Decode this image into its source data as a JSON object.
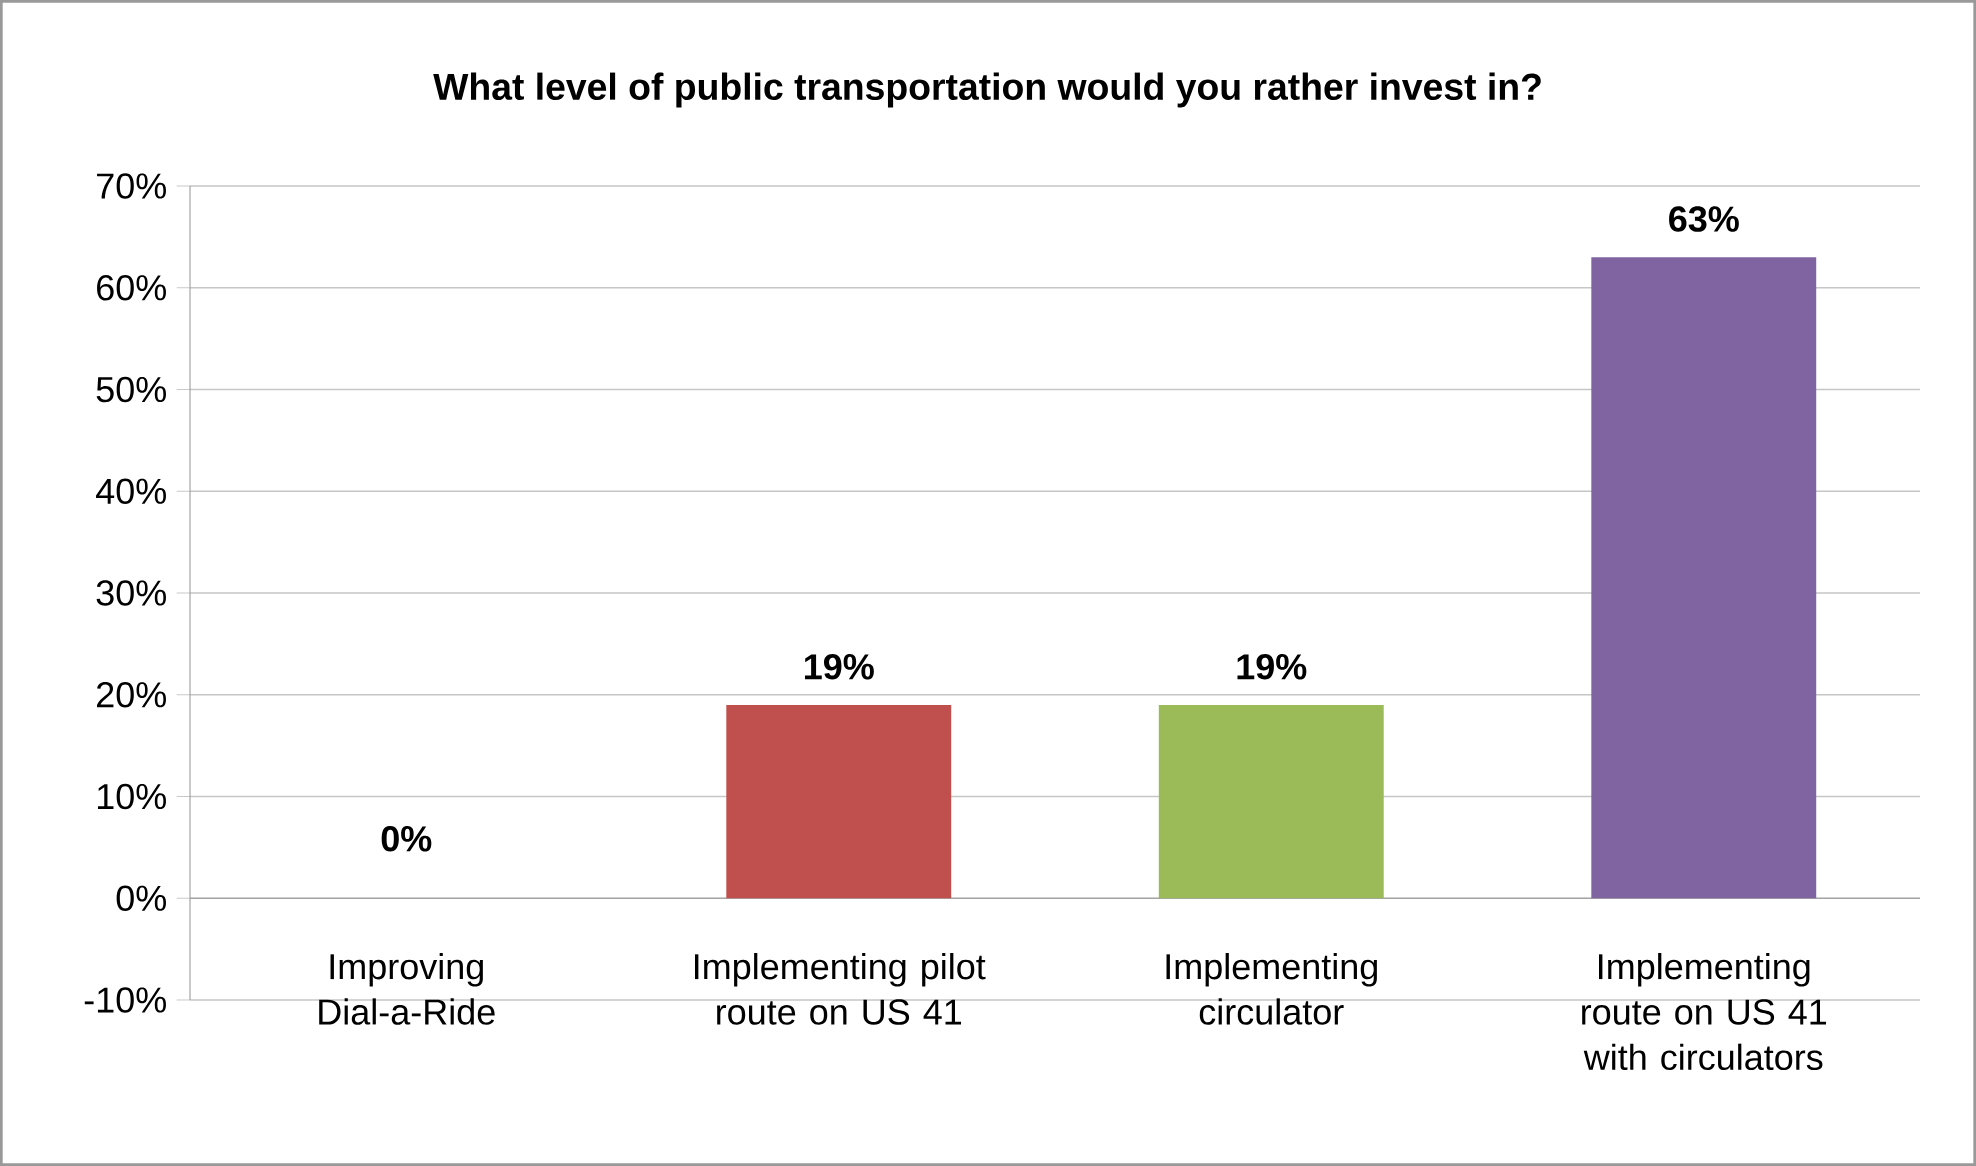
{
  "chart_data": {
    "type": "bar",
    "title": "What level of public transportation would you rather invest in?",
    "categories": [
      "Improving Dial-a-Ride",
      "Implementing pilot route on US 41",
      "Implementing circulator",
      "Implementing route on US 41 with circulators"
    ],
    "values": [
      0,
      19,
      19,
      63
    ],
    "value_labels": [
      "0%",
      "19%",
      "19%",
      "63%"
    ],
    "colors": [
      "#4f81bd",
      "#c0504d",
      "#9bbb59",
      "#8064a2"
    ],
    "ylim": [
      -10,
      70
    ],
    "yticks": [
      {
        "value": -10,
        "label": "-10%"
      },
      {
        "value": 0,
        "label": "0%"
      },
      {
        "value": 10,
        "label": "10%"
      },
      {
        "value": 20,
        "label": "20%"
      },
      {
        "value": 30,
        "label": "30%"
      },
      {
        "value": 40,
        "label": "40%"
      },
      {
        "value": 50,
        "label": "50%"
      },
      {
        "value": 60,
        "label": "60%"
      },
      {
        "value": 70,
        "label": "70%"
      }
    ],
    "grid": "y"
  }
}
